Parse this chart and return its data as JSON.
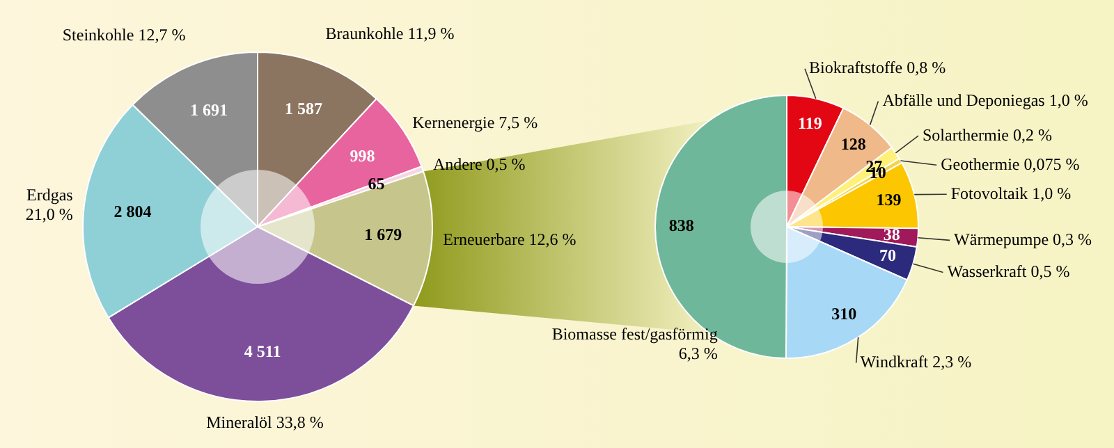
{
  "chart_data": [
    {
      "type": "donut",
      "categories": [
        "Braunkohle 11,9 %",
        "Kernenergie 7,5 %",
        "Andere 0,5 %",
        "Erneuerbare 12,6 %",
        "Mineralöl 33,8 %",
        "Erdgas 21,0 %",
        "Steinkohle 12,7 %"
      ],
      "values": [
        1587,
        998,
        65,
        1679,
        4511,
        2804,
        1691
      ],
      "value_labels": [
        "1 587",
        "998",
        "65",
        "1 679",
        "4 511",
        "2 804",
        "1 691"
      ],
      "colors": [
        "#8c7560",
        "#e8649e",
        "#f7d6e4",
        "#c6c68c",
        "#7d4f9a",
        "#8fd0d6",
        "#8e8e8e"
      ],
      "legend": false
    },
    {
      "type": "donut",
      "categories": [
        "Biokraftstoffe 0,8 %",
        "Abfälle und Deponiegas 1,0 %",
        "Solarthermie 0,2 %",
        "Geothermie 0,075 %",
        "Fotovoltaik 1,0 %",
        "Wärmepumpe 0,3 %",
        "Wasserkraft 0,5 %",
        "Windkraft 2,3 %",
        "Biomasse fest/gasförmig 6,3 %"
      ],
      "values": [
        119,
        128,
        27,
        10,
        139,
        38,
        70,
        310,
        838
      ],
      "value_labels": [
        "119",
        "128",
        "27",
        "10",
        "139",
        "38",
        "70",
        "310",
        "838"
      ],
      "colors": [
        "#e30613",
        "#f0b98a",
        "#fff07a",
        "#f3d34a",
        "#fcc600",
        "#a0195a",
        "#2c2a7c",
        "#a7d8f5",
        "#6fb79a"
      ],
      "legend": false
    }
  ]
}
